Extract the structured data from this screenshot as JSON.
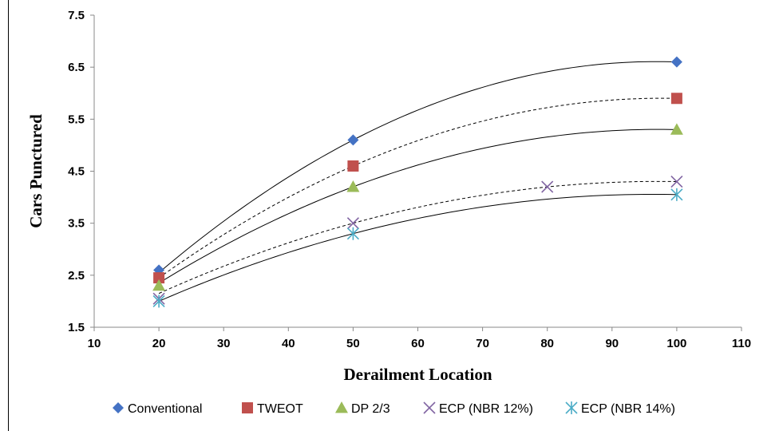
{
  "chart_data": {
    "type": "scatter",
    "title": "",
    "xlabel": "Derailment Location",
    "ylabel": "Cars Punctured",
    "xlim": [
      10,
      110
    ],
    "ylim": [
      1.5,
      7.5
    ],
    "xticks": [
      10,
      20,
      30,
      40,
      50,
      60,
      70,
      80,
      90,
      100,
      110
    ],
    "yticks": [
      1.5,
      2.5,
      3.5,
      4.5,
      5.5,
      6.5,
      7.5
    ],
    "grid": false,
    "legend_position": "bottom",
    "series": [
      {
        "name": "Conventional",
        "marker": "diamond",
        "color": "#4472C4",
        "points": [
          [
            20,
            2.6
          ],
          [
            50,
            5.1
          ],
          [
            100,
            6.6
          ]
        ],
        "trend": {
          "x": [
            20,
            50,
            100
          ],
          "y": [
            2.55,
            5.1,
            6.6
          ],
          "line_style": "solid",
          "color": "#000000"
        }
      },
      {
        "name": "TWEOT",
        "marker": "square",
        "color": "#C0504D",
        "points": [
          [
            20,
            2.45
          ],
          [
            50,
            4.6
          ],
          [
            100,
            5.9
          ]
        ],
        "trend": {
          "x": [
            20,
            50,
            100
          ],
          "y": [
            2.45,
            4.6,
            5.9
          ],
          "line_style": "dashed",
          "color": "#000000"
        }
      },
      {
        "name": "DP 2/3",
        "marker": "triangle",
        "color": "#9BBB59",
        "points": [
          [
            20,
            2.3
          ],
          [
            50,
            4.2
          ],
          [
            100,
            5.3
          ]
        ],
        "trend": {
          "x": [
            20,
            50,
            100
          ],
          "y": [
            2.35,
            4.2,
            5.3
          ],
          "line_style": "solid",
          "color": "#000000"
        }
      },
      {
        "name": "ECP (NBR 12%)",
        "marker": "x",
        "color": "#8064A2",
        "points": [
          [
            20,
            2.05
          ],
          [
            50,
            3.5
          ],
          [
            80,
            4.2
          ],
          [
            100,
            4.3
          ]
        ],
        "trend": {
          "x": [
            20,
            50,
            100
          ],
          "y": [
            2.15,
            3.5,
            4.3
          ],
          "line_style": "dashed",
          "color": "#000000"
        }
      },
      {
        "name": "ECP (NBR 14%)",
        "marker": "asterisk",
        "color": "#4BACC6",
        "points": [
          [
            20,
            2.0
          ],
          [
            50,
            3.3
          ],
          [
            100,
            4.05
          ]
        ],
        "trend": {
          "x": [
            20,
            50,
            100
          ],
          "y": [
            2.0,
            3.3,
            4.05
          ],
          "line_style": "solid",
          "color": "#000000"
        }
      }
    ]
  }
}
